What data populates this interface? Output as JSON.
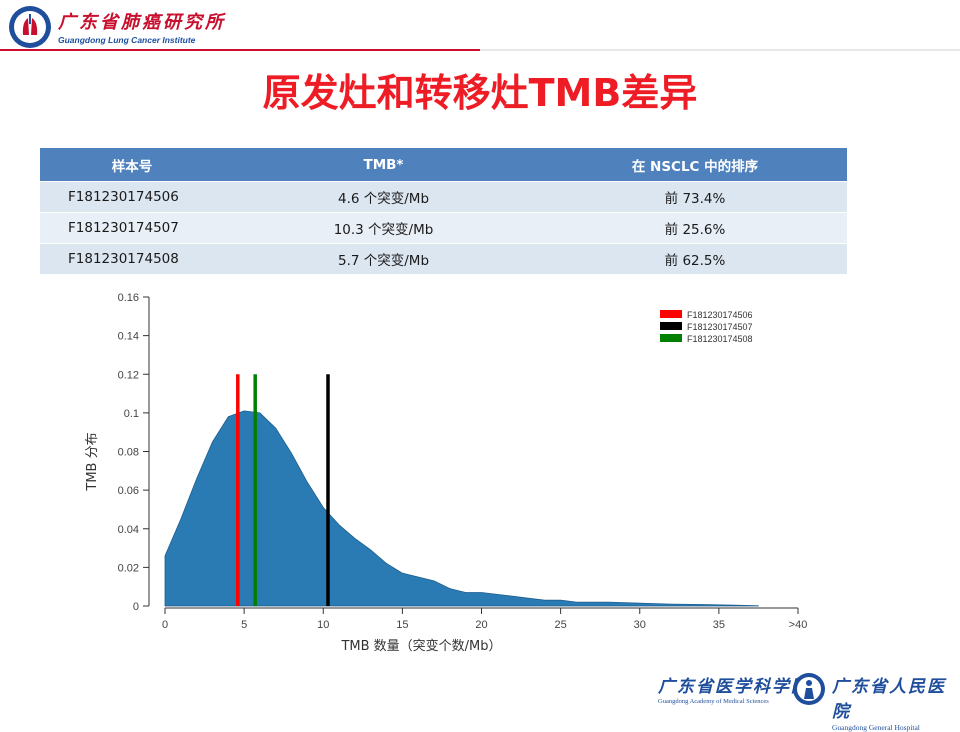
{
  "header": {
    "org_name_cn": "广东省肺癌研究所",
    "org_name_en": "Guangdong Lung Cancer Institute"
  },
  "title": "原发灶和转移灶TMB差异",
  "table": {
    "headers": [
      "样本号",
      "TMB*",
      "在 NSCLC 中的排序"
    ],
    "rows": [
      [
        "F181230174506",
        "4.6 个突变/Mb",
        "前 73.4%"
      ],
      [
        "F181230174507",
        "10.3 个突变/Mb",
        "前 25.6%"
      ],
      [
        "F181230174508",
        "5.7 个突变/Mb",
        "前 62.5%"
      ]
    ]
  },
  "chart_data": {
    "type": "area",
    "xlabel": "TMB 数量（突变个数/Mb）",
    "ylabel": "TMB 分布",
    "xlim": [
      0,
      40
    ],
    "ylim": [
      0,
      0.16
    ],
    "x_ticks": [
      0,
      5,
      10,
      15,
      20,
      25,
      30,
      35,
      40
    ],
    "x_tick_labels": [
      "0",
      "5",
      "10",
      "15",
      "20",
      "25",
      "30",
      "35",
      ">40"
    ],
    "y_ticks": [
      0,
      0.02,
      0.04,
      0.06,
      0.08,
      0.1,
      0.12,
      0.14,
      0.16
    ],
    "y_tick_labels": [
      "0",
      "0.02",
      "0.04",
      "0.06",
      "0.08",
      "0.1",
      "0.12",
      "0.14",
      "0.16"
    ],
    "distribution": {
      "x": [
        0,
        1,
        2,
        3,
        4,
        5,
        6,
        7,
        8,
        9,
        10,
        11,
        12,
        13,
        14,
        15,
        16,
        17,
        18,
        19,
        20,
        21,
        22,
        23,
        24,
        25,
        26,
        28,
        30,
        32,
        34,
        36,
        37.5
      ],
      "y": [
        0.026,
        0.045,
        0.066,
        0.085,
        0.098,
        0.101,
        0.1,
        0.092,
        0.079,
        0.064,
        0.051,
        0.042,
        0.035,
        0.029,
        0.022,
        0.017,
        0.015,
        0.013,
        0.009,
        0.007,
        0.007,
        0.006,
        0.005,
        0.004,
        0.003,
        0.003,
        0.002,
        0.002,
        0.0015,
        0.001,
        0.0008,
        0.0004,
        0.0001
      ],
      "color": "#2a7bb4"
    },
    "series": [
      {
        "name": "F181230174506",
        "value": 4.6,
        "color": "#ff0000"
      },
      {
        "name": "F181230174507",
        "value": 10.3,
        "color": "#000000"
      },
      {
        "name": "F181230174508",
        "value": 5.7,
        "color": "#008000"
      }
    ],
    "marker_height": 0.12,
    "legend_position": "top-right",
    "grid": false
  },
  "footer": {
    "academy_cn": "广东省医学科学院",
    "academy_en": "Guangdong Academy of Medical Sciences",
    "hospital_cn": "广东省人民医院",
    "hospital_en": "Guangdong General Hospital"
  }
}
